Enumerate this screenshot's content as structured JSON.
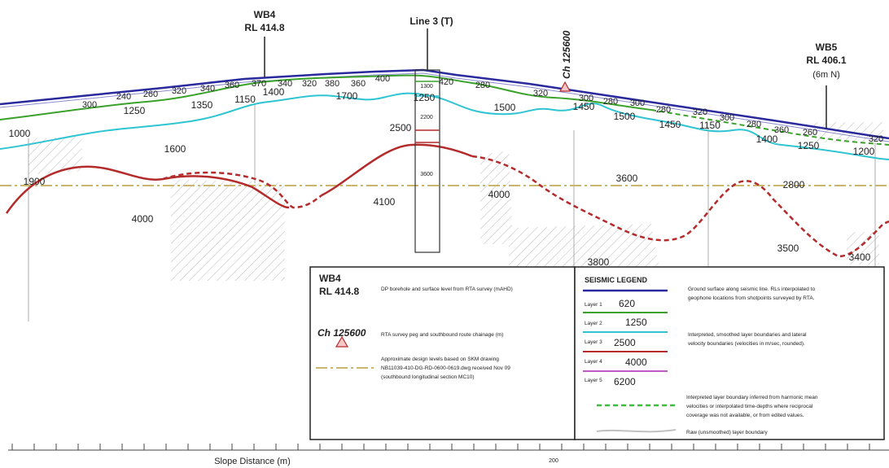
{
  "boreholes": {
    "wb4": {
      "name": "WB4",
      "rl": "RL 414.8"
    },
    "line3": {
      "name": "Line 3 (T)"
    },
    "chainage": "Ch 125600",
    "wb5": {
      "name": "WB5",
      "rl": "RL 406.1",
      "offset": "(6m N)"
    }
  },
  "velocity_labels": [
    {
      "text": "300",
      "size": 11
    },
    {
      "text": "240",
      "size": 11
    },
    {
      "text": "260",
      "size": 11
    },
    {
      "text": "320",
      "size": 11
    },
    {
      "text": "340",
      "size": 11
    },
    {
      "text": "360",
      "size": 11
    },
    {
      "text": "370",
      "size": 11
    },
    {
      "text": "340",
      "size": 11
    },
    {
      "text": "320",
      "size": 11
    },
    {
      "text": "380",
      "size": 11
    },
    {
      "text": "360",
      "size": 11
    },
    {
      "text": "400",
      "size": 11
    },
    {
      "text": "420",
      "size": 11
    },
    {
      "text": "280",
      "size": 11
    },
    {
      "text": "320",
      "size": 11
    },
    {
      "text": "300",
      "size": 11
    },
    {
      "text": "280",
      "size": 11
    },
    {
      "text": "300",
      "size": 11
    },
    {
      "text": "280",
      "size": 11
    },
    {
      "text": "320",
      "size": 11
    },
    {
      "text": "300",
      "size": 11
    },
    {
      "text": "280",
      "size": 11
    },
    {
      "text": "360",
      "size": 11
    },
    {
      "text": "260",
      "size": 11
    },
    {
      "text": "320",
      "size": 11
    },
    {
      "text": "1250",
      "size": 12
    },
    {
      "text": "1350",
      "size": 12
    },
    {
      "text": "1150",
      "size": 12
    },
    {
      "text": "1400",
      "size": 12
    },
    {
      "text": "1700",
      "size": 12
    },
    {
      "text": "1250",
      "size": 12
    },
    {
      "text": "1500",
      "size": 12
    },
    {
      "text": "1450",
      "size": 12
    },
    {
      "text": "1500",
      "size": 12
    },
    {
      "text": "1450",
      "size": 12
    },
    {
      "text": "1150",
      "size": 12
    },
    {
      "text": "1400",
      "size": 12
    },
    {
      "text": "1250",
      "size": 12
    },
    {
      "text": "1200",
      "size": 12
    },
    {
      "text": "1000",
      "size": 12
    },
    {
      "text": "1600",
      "size": 12
    },
    {
      "text": "2500",
      "size": 12
    },
    {
      "text": "1900",
      "size": 12
    },
    {
      "text": "3600",
      "size": 12
    },
    {
      "text": "2800",
      "size": 12
    },
    {
      "text": "4000",
      "size": 12
    },
    {
      "text": "4100",
      "size": 12
    },
    {
      "text": "4000",
      "size": 12
    },
    {
      "text": "3500",
      "size": 12
    },
    {
      "text": "3800",
      "size": 12
    },
    {
      "text": "3400",
      "size": 12
    }
  ],
  "column_labels": [
    "1300",
    "2200",
    "3600"
  ],
  "legend_left": {
    "wb4_name": "WB4",
    "wb4_rl": "RL 414.8",
    "borehole_desc": "DP borehole and surface level from RTA survey (mAHD)",
    "chainage_name": "Ch 125600",
    "chainage_desc": "RTA survey peg and southbound route chainage (m)",
    "design_desc": [
      "Approximate design levels based on SKM drawing",
      "NB11039-410-DG-RD-0600-0619.dwg received Nov 09",
      "(southbound longitudinal section MC10)"
    ]
  },
  "legend_right": {
    "title": "SEISMIC LEGEND",
    "layers": [
      {
        "name": "Layer 1",
        "velocity": "620"
      },
      {
        "name": "Layer 2",
        "velocity": "1250"
      },
      {
        "name": "Layer 3",
        "velocity": "2500"
      },
      {
        "name": "Layer 4",
        "velocity": "4000"
      },
      {
        "name": "Layer 5",
        "velocity": "6200"
      }
    ],
    "ground_desc": [
      "Ground surface along seismic line.  RLs interpolated to",
      "geophone locations from shotpoints surveyed by RTA."
    ],
    "interp_desc": [
      "Interpreted, smoothed layer boundaries and lateral",
      "velocity boundaries (velocities in m/sec, rounded)."
    ],
    "inferred_desc": [
      "Interpreted layer boundary inferred from harmonic mean",
      "velocities or interpolated time-depths where reciprocal",
      "coverage was not available, or from edited values."
    ],
    "raw_desc": "Raw (unsmoothed) layer boundary"
  },
  "axis": {
    "title": "Slope Distance (m)",
    "tick_label": "200"
  },
  "colors": {
    "ground": "#2a2a9e",
    "layer2": "#3aa12a",
    "layer3": "#2fc4d2",
    "layer4": "#b32b2b",
    "layer5": "#c15bc9",
    "design": "#c9b66a"
  }
}
